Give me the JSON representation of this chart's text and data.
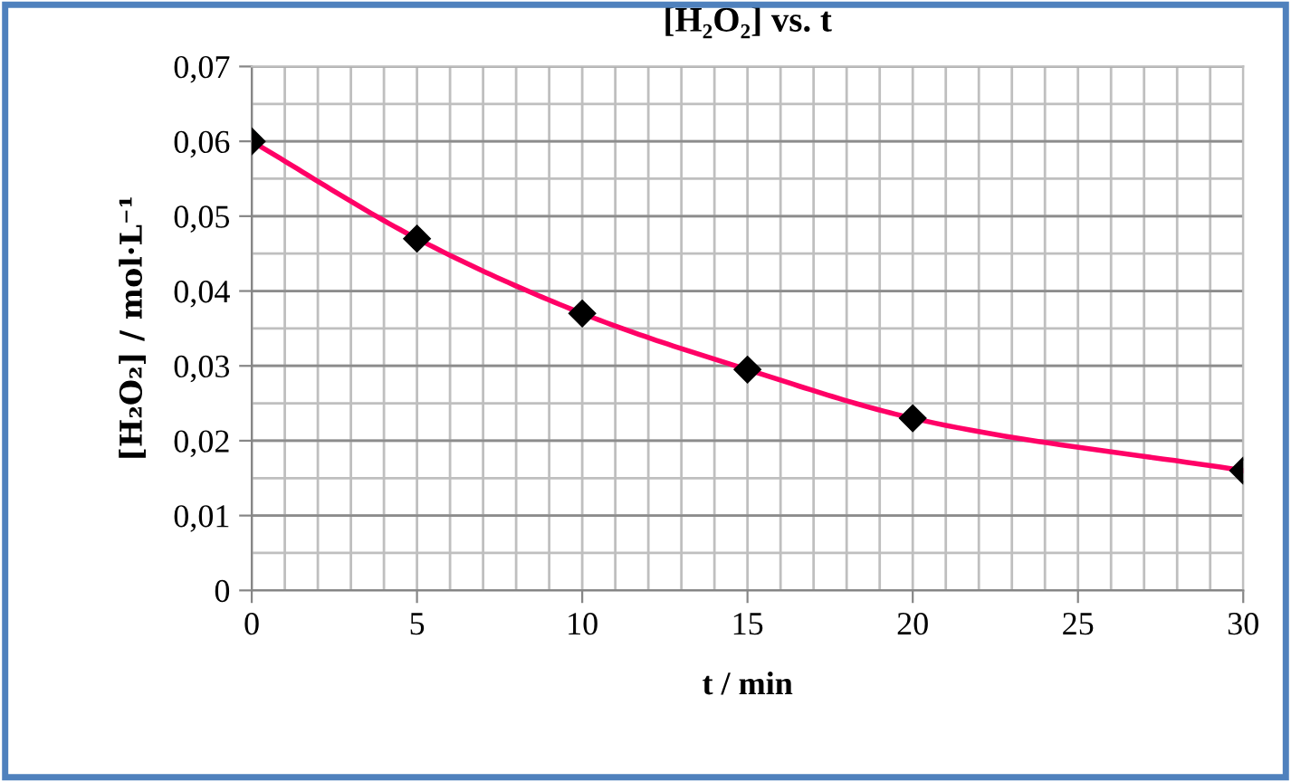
{
  "chart_data": {
    "type": "line",
    "title": "[H₂O₂] vs. t",
    "xlabel": "t / min",
    "ylabel": "[H₂O₂] / mol·L⁻¹",
    "x": [
      0,
      5,
      10,
      15,
      20,
      30
    ],
    "series": [
      {
        "color": "#ff0066",
        "values": [
          0.06,
          0.047,
          0.037,
          0.0295,
          0.023,
          0.016
        ]
      }
    ],
    "marker": "diamond",
    "line_style": "solid",
    "grid": true,
    "xlim": [
      0,
      30
    ],
    "xticks": [
      0,
      5,
      10,
      15,
      20,
      25,
      30
    ],
    "ylim": [
      0,
      0.07
    ],
    "yticks": [
      0,
      {
        "value": 0.01,
        "label": "0,01"
      },
      {
        "value": 0.02,
        "label": "0,02"
      },
      {
        "value": 0.03,
        "label": "0,03"
      },
      {
        "value": 0.04,
        "label": "0,04"
      },
      {
        "value": 0.05,
        "label": "0,05"
      },
      {
        "value": 0.06,
        "label": "0,06"
      },
      {
        "value": 0.07,
        "label": "0,07"
      }
    ]
  }
}
